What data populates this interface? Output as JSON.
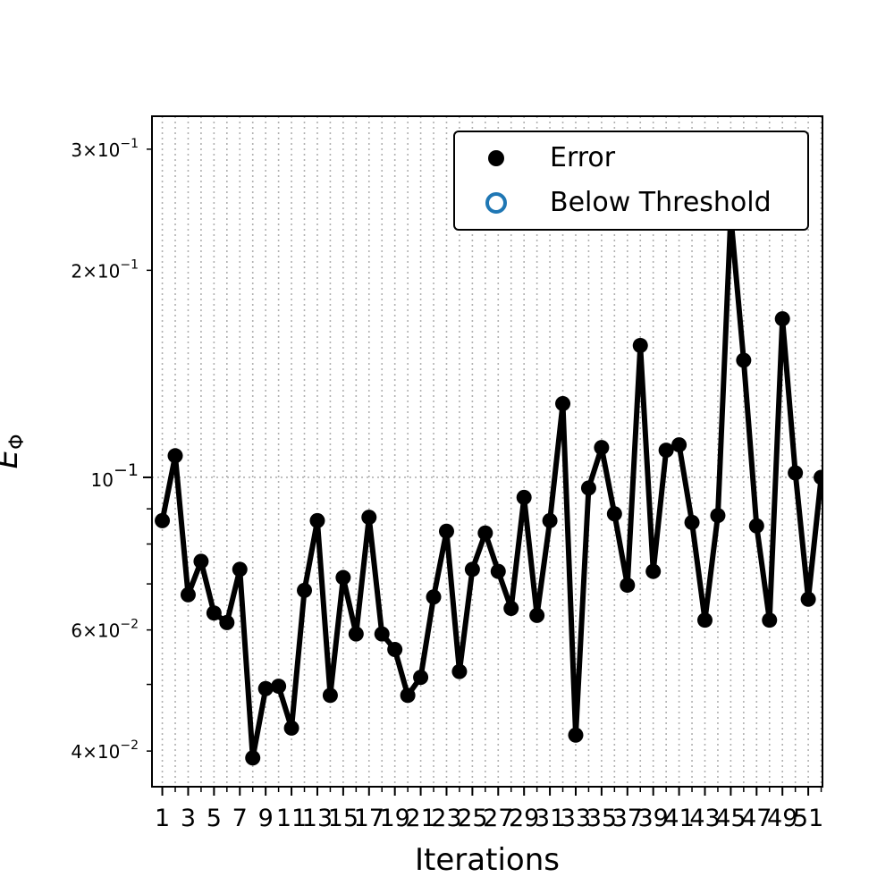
{
  "chart_data": {
    "type": "line",
    "title": "",
    "xlabel": "Iterations",
    "ylabel": "E_Φ",
    "yscale": "log",
    "xlim": [
      0.2,
      52.1
    ],
    "ylim": [
      0.0355,
      0.335
    ],
    "grid": "vertical dotted at each iteration, horizontal dotted at major decade",
    "legend_position": "top-right",
    "x_ticks": [
      1,
      3,
      5,
      7,
      9,
      11,
      13,
      15,
      17,
      19,
      21,
      23,
      25,
      27,
      29,
      31,
      33,
      35,
      37,
      39,
      41,
      43,
      45,
      47,
      49,
      51
    ],
    "y_major_ticks": [
      {
        "value": 0.1,
        "mantissa": "",
        "exponent": "−1"
      }
    ],
    "y_minor_tick_values": [
      0.04,
      0.05,
      0.06,
      0.07,
      0.08,
      0.09,
      0.2,
      0.3
    ],
    "y_minor_labeled": [
      {
        "value": 0.04,
        "mantissa": "4",
        "exponent": "−2"
      },
      {
        "value": 0.06,
        "mantissa": "6",
        "exponent": "−2"
      },
      {
        "value": 0.2,
        "mantissa": "2",
        "exponent": "−1"
      },
      {
        "value": 0.3,
        "mantissa": "3",
        "exponent": "−1"
      }
    ],
    "series": [
      {
        "name": "Error",
        "color": "#000000",
        "x": [
          1,
          2,
          3,
          4,
          5,
          6,
          7,
          8,
          9,
          10,
          11,
          12,
          13,
          14,
          15,
          16,
          17,
          18,
          19,
          20,
          21,
          22,
          23,
          24,
          25,
          26,
          27,
          28,
          29,
          30,
          31,
          32,
          33,
          34,
          35,
          36,
          37,
          38,
          39,
          40,
          41,
          42,
          43,
          44,
          45,
          46,
          47,
          48,
          49,
          50,
          51,
          52
        ],
        "values": [
          0.0865,
          0.1075,
          0.0675,
          0.0755,
          0.0635,
          0.0615,
          0.0735,
          0.0391,
          0.0493,
          0.0497,
          0.0432,
          0.0685,
          0.0865,
          0.0482,
          0.0715,
          0.0592,
          0.0875,
          0.0592,
          0.0562,
          0.0482,
          0.0512,
          0.067,
          0.0835,
          0.0522,
          0.0735,
          0.083,
          0.073,
          0.0645,
          0.0935,
          0.063,
          0.0865,
          0.128,
          0.0422,
          0.0965,
          0.1105,
          0.0885,
          0.0697,
          0.1555,
          0.073,
          0.1095,
          0.1115,
          0.086,
          0.062,
          0.088,
          0.24,
          0.148,
          0.085,
          0.062,
          0.17,
          0.1015,
          0.0665,
          0.1
        ]
      },
      {
        "name": "Below Threshold",
        "color": "#1f77b4",
        "x": [],
        "values": []
      }
    ]
  }
}
